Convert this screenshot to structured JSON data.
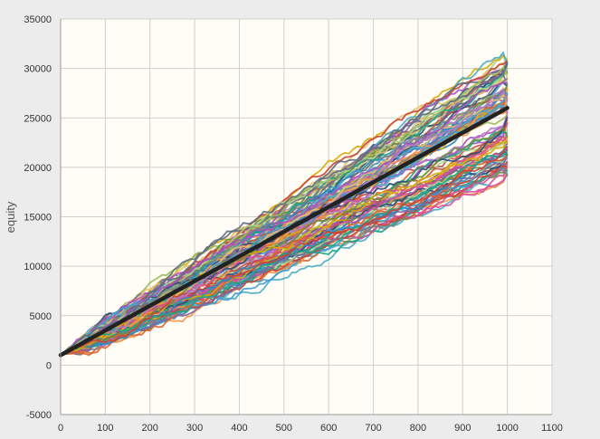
{
  "chart_data": {
    "type": "line",
    "title": "",
    "xlabel": "",
    "ylabel": "equity",
    "xlim": [
      0,
      1100
    ],
    "ylim": [
      -5000,
      35000
    ],
    "x_ticks": [
      "0",
      "100",
      "200",
      "300",
      "400",
      "500",
      "600",
      "700",
      "800",
      "900",
      "1000",
      "1100"
    ],
    "y_ticks": [
      "-5000",
      "0",
      "5000",
      "10000",
      "15000",
      "20000",
      "25000",
      "30000",
      "35000"
    ],
    "grid": true,
    "legend": "none",
    "background_color": "#fffdf5",
    "series_palette": [
      "#c0504d",
      "#4bacc6",
      "#9bbb59",
      "#8064a2",
      "#f79646",
      "#2c4d75",
      "#e7c06f",
      "#d64f9d",
      "#6a8f3a",
      "#3d9bd6",
      "#e0602b",
      "#7f7f7f",
      "#a9d18e",
      "#b04fc4",
      "#2e86c1",
      "#d4ac0d",
      "#17a589",
      "#cb4335",
      "#5d6d7e",
      "#af7ac5"
    ],
    "series_count": 100,
    "series_x": [
      0,
      100,
      200,
      300,
      400,
      500,
      600,
      700,
      800,
      900,
      1000
    ],
    "series_start": 1000,
    "series_final_range": [
      19000,
      31000
    ],
    "mean_series": {
      "x": [
        0,
        100,
        200,
        300,
        400,
        500,
        600,
        700,
        800,
        900,
        1000
      ],
      "values": [
        1000,
        3500,
        6000,
        8500,
        11000,
        13500,
        16000,
        18500,
        21000,
        23500,
        26000
      ],
      "color": "#222222"
    }
  }
}
